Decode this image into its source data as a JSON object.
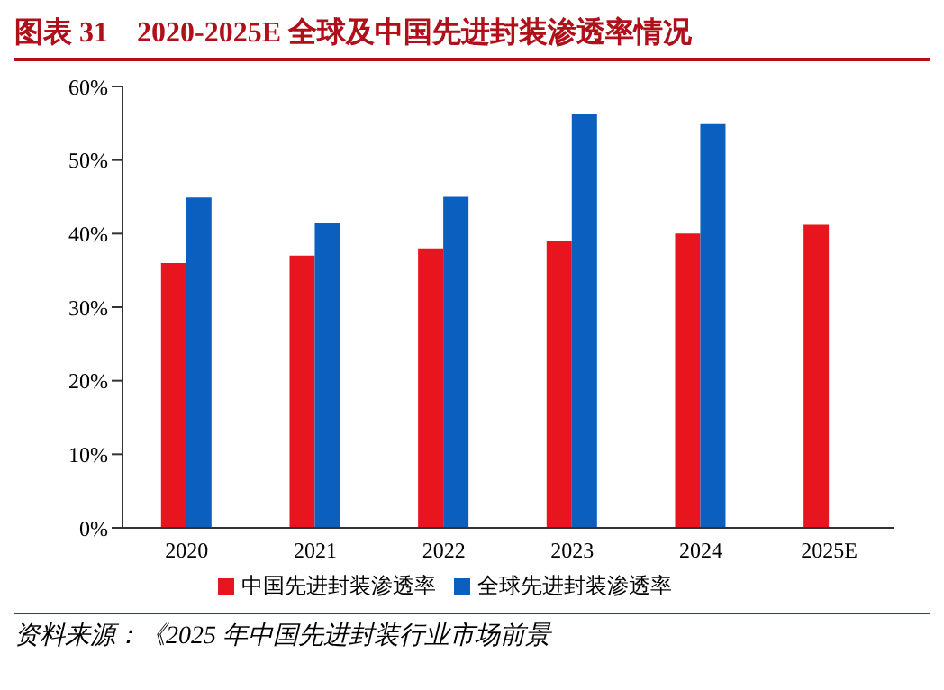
{
  "chart_data": {
    "type": "bar",
    "title": "图表 31　2020-2025E 全球及中国先进封装渗透率情况",
    "categories": [
      "2020",
      "2021",
      "2022",
      "2023",
      "2024",
      "2025E"
    ],
    "series": [
      {
        "name": "中国先进封装渗透率",
        "color": "#e8141e",
        "values": [
          36,
          37,
          38,
          39,
          40,
          41.2
        ]
      },
      {
        "name": "全球先进封装渗透率",
        "color": "#0a5fbf",
        "values": [
          44.9,
          41.4,
          45,
          56.2,
          54.9,
          null
        ]
      }
    ],
    "ylim": [
      0,
      60
    ],
    "yticks": [
      {
        "value": 0,
        "label": "0%"
      },
      {
        "value": 10,
        "label": "10%"
      },
      {
        "value": 20,
        "label": "20%"
      },
      {
        "value": 30,
        "label": "30%"
      },
      {
        "value": 40,
        "label": "40%"
      },
      {
        "value": 50,
        "label": "50%"
      },
      {
        "value": 60,
        "label": "60%"
      }
    ],
    "grid": false,
    "legend": "bottom",
    "annotations": [
      "资料来源：《2025 年中国先进封装行业市场前景"
    ]
  }
}
